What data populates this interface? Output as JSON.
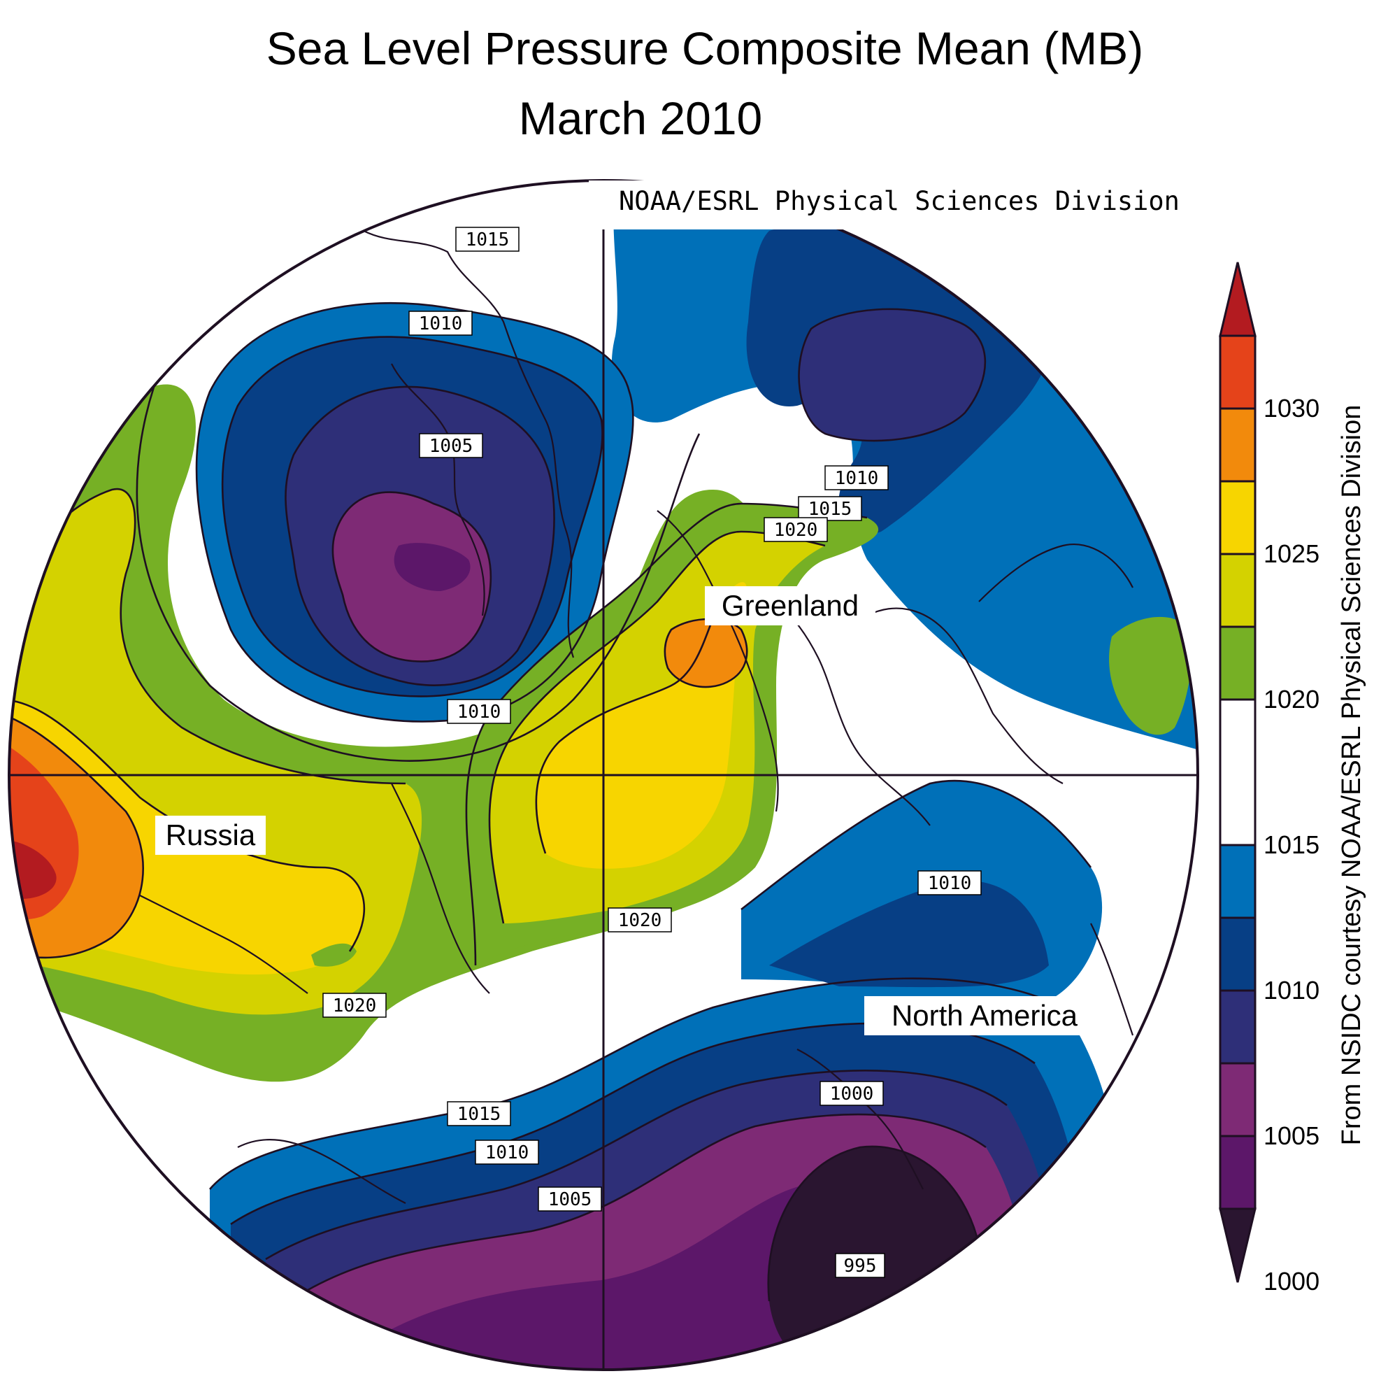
{
  "title": "Sea Level Pressure Composite Mean (MB)",
  "subtitle": "March 2010",
  "credit_top": "NOAA/ESRL Physical Sciences Division",
  "credit_side": "From NSIDC courtesy NOAA/ESRL Physical Sciences Division",
  "regions": {
    "russia": "Russia",
    "greenland": "Greenland",
    "north_america": "North America"
  },
  "contour_labels": [
    "1015",
    "1010",
    "1005",
    "1010",
    "1010",
    "1015",
    "1020",
    "1020",
    "1010",
    "1020",
    "1015",
    "1010",
    "1005",
    "1000",
    "995"
  ],
  "colorbar": {
    "labels": [
      "1030",
      "1025",
      "1020",
      "1015",
      "1010",
      "1005",
      "1000"
    ],
    "colors": {
      "below_1000": "#2a1530",
      "1000_1002_5": "#5c1769",
      "1002_5_1005": "#7e2a75",
      "1005_1007_5": "#2e2f78",
      "1007_5_1010": "#073f85",
      "1010_1012_5": "#0070b8",
      "1012_5_1017_5": "#ffffff",
      "1017_5_1020": "#76b025",
      "1020_1022_5": "#d4d200",
      "1022_5_1025": "#f7d500",
      "1025_1027_5": "#f28a0c",
      "1027_5_1030": "#e5431a",
      "above_1030": "#b31b20"
    }
  }
}
